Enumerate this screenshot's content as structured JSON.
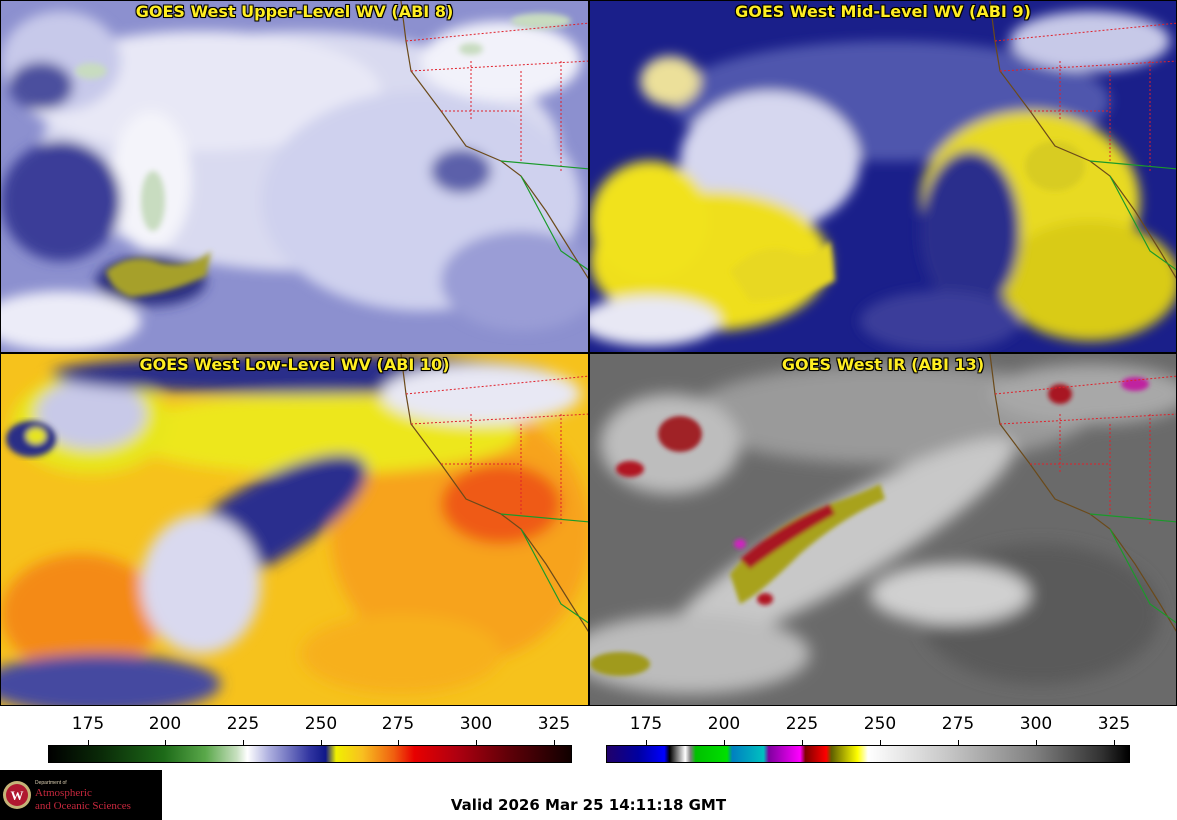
{
  "panels": [
    {
      "title": "GOES West Upper-Level WV (ABI 8)",
      "palette": "wv-upper"
    },
    {
      "title": "GOES West Mid-Level WV (ABI 9)",
      "palette": "wv-mid"
    },
    {
      "title": "GOES West Low-Level WV (ABI 10)",
      "palette": "wv-low"
    },
    {
      "title": "GOES West IR (ABI 13)",
      "palette": "ir"
    }
  ],
  "colorbars": {
    "wv": {
      "ticks": [
        "175",
        "200",
        "225",
        "250",
        "275",
        "300",
        "325"
      ],
      "range": [
        163,
        333
      ]
    },
    "ir": {
      "ticks": [
        "175",
        "200",
        "225",
        "250",
        "275",
        "300",
        "325"
      ],
      "range": [
        163,
        333
      ]
    }
  },
  "colors": {
    "state_borders": "#e0202a",
    "coastline": "#6b4a1a",
    "mexico_borders": "#1a9a2a",
    "title_text": "#ffee22"
  },
  "logo": {
    "dept": "Department of",
    "line1": "Atmospheric",
    "line2": "and Oceanic Sciences",
    "seal": "uw-crest-icon"
  },
  "valid_time": "Valid 2026 Mar 25 14:11:18 GMT"
}
